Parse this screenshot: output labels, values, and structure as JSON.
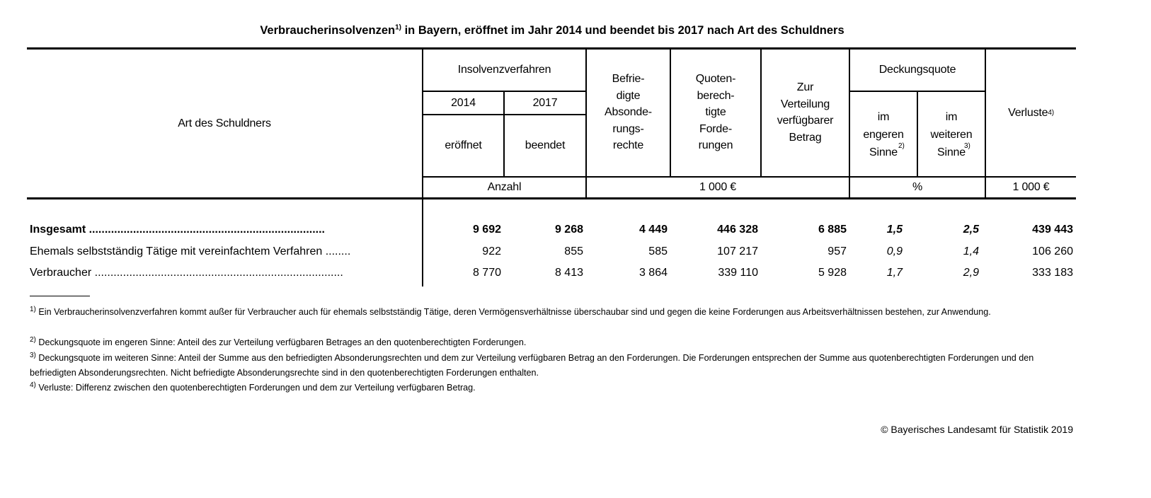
{
  "title": {
    "text": "Verbraucherinsolvenzen",
    "note": "1)",
    "rest": " in Bayern, eröffnet im Jahr 2014 und beendet bis 2017 nach Art des Schuldners"
  },
  "header": {
    "stub": "Art des Schuldners",
    "insolvenzverfahren": "Insolvenzverfahren",
    "year1": "2014",
    "year2": "2017",
    "eroeffnet": "eröffnet",
    "beendet": "beendet",
    "befriedigte": "Befrie-\ndigte\nAbsonde-\nrungs-\nrechte",
    "quoten": "Quoten-\nberech-\ntigte\nForde-\nrungen",
    "verteilung": "Zur\nVerteilung\nverfügbarer\nBetrag",
    "deckungsquote": "Deckungsquote",
    "engeren": "im\nengeren\nSinne",
    "engeren_note": "2)",
    "weiteren": "im\nweiteren\nSinne",
    "weiteren_note": "3)",
    "verluste": "Verluste",
    "verluste_note": "4)",
    "unit_anzahl": "Anzahl",
    "unit_eur": "1 000 €",
    "unit_pct": "%",
    "unit_eur2": "1 000 €"
  },
  "rows": [
    {
      "label": "Insgesamt",
      "dots": " ...........................................................................",
      "values": [
        "9 692",
        "9 268",
        "4 449",
        "446 328",
        "6 885",
        "1,5",
        "2,5",
        "439 443"
      ]
    },
    {
      "label": "Ehemals selbstständig Tätige mit vereinfachtem Verfahren",
      "dots": " ........",
      "values": [
        "922",
        "855",
        "585",
        "107 217",
        "957",
        "0,9",
        "1,4",
        "106 260"
      ]
    },
    {
      "label": "Verbraucher",
      "dots": " ...............................................................................",
      "values": [
        "8 770",
        "8 413",
        "3 864",
        "339 110",
        "5 928",
        "1,7",
        "2,9",
        "333 183"
      ]
    }
  ],
  "footnotes": [
    {
      "mark": "1)",
      "text": "  Ein Verbraucherinsolvenzverfahren kommt außer für Verbraucher auch für ehemals selbstständig Tätige, deren Vermögensverhältnisse überschaubar sind und gegen die keine Forderungen aus Arbeitsverhältnissen bestehen, zur Anwendung."
    },
    {
      "mark": "2)",
      "text": " Deckungsquote im engeren Sinne: Anteil des zur Verteilung verfügbaren Betrages an den quotenberechtigten Forderungen."
    },
    {
      "mark": "3)",
      "text": " Deckungsquote im weiteren Sinne: Anteil der Summe aus den befriedigten Absonderungsrechten und dem zur Verteilung verfügbaren Betrag an den Forderungen. Die Forderungen entsprechen der Summe aus quotenberechtigten Forderungen und den befriedigten Absonderungsrechten. Nicht befriedigte Absonderungsrechte sind in den quotenberechtigten Forderungen enthalten."
    },
    {
      "mark": "4)",
      "text": " Verluste: Differenz zwischen den quotenberechtigten Forderungen und dem zur Verteilung verfügbaren Betrag."
    }
  ],
  "copyright": "© Bayerisches Landesamt für Statistik 2019"
}
